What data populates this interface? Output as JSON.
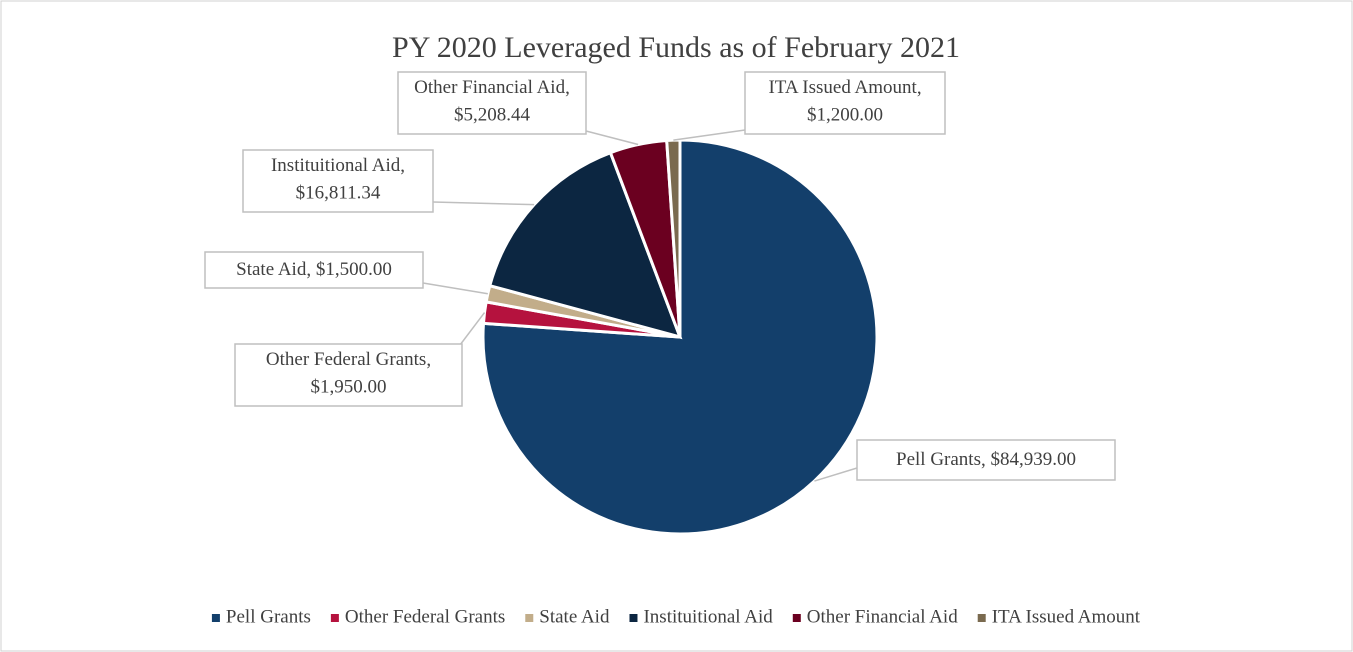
{
  "chart_data": {
    "type": "pie",
    "title": "PY 2020 Leveraged Funds as of February 2021",
    "categories": [
      "Pell Grants",
      "Other Federal Grants",
      "State Aid",
      "Instituitional Aid",
      "Other Financial Aid",
      "ITA Issued Amount"
    ],
    "values": [
      84939,
      1950,
      1500,
      16811.34,
      5208.44,
      1200
    ],
    "value_labels": [
      "$84,939.00",
      "$1,950.00",
      "$1,500.00",
      "$16,811.34",
      "$5,208.44",
      "$1,200.00"
    ],
    "colors": [
      "#133f6b",
      "#b5123e",
      "#c2ad8a",
      "#0c2641",
      "#6b0020",
      "#7a6a4f"
    ],
    "legend": "bottom"
  }
}
